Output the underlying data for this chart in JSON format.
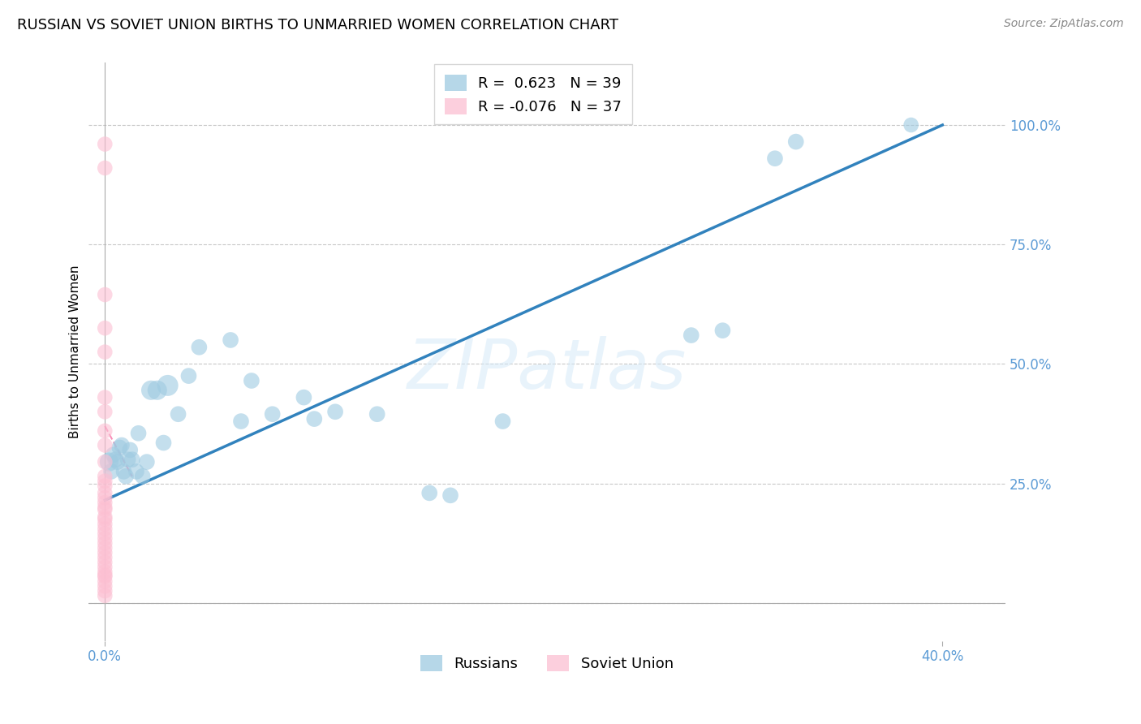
{
  "title": "RUSSIAN VS SOVIET UNION BIRTHS TO UNMARRIED WOMEN CORRELATION CHART",
  "source": "Source: ZipAtlas.com",
  "ylabel": "Births to Unmarried Women",
  "russian_R": 0.623,
  "russian_N": 39,
  "soviet_R": -0.076,
  "soviet_N": 37,
  "blue_color": "#9ecae1",
  "pink_color": "#fcbfd2",
  "blue_line_color": "#3182bd",
  "pink_line_color": "#f768a1",
  "watermark": "ZIPatlas",
  "russians_x": [
    0.002,
    0.003,
    0.004,
    0.005,
    0.006,
    0.007,
    0.008,
    0.009,
    0.01,
    0.011,
    0.012,
    0.013,
    0.015,
    0.016,
    0.018,
    0.02,
    0.022,
    0.025,
    0.028,
    0.03,
    0.035,
    0.04,
    0.045,
    0.06,
    0.065,
    0.07,
    0.08,
    0.095,
    0.1,
    0.11,
    0.13,
    0.155,
    0.165,
    0.19,
    0.28,
    0.295,
    0.32,
    0.33,
    0.385
  ],
  "russians_y": [
    0.295,
    0.275,
    0.31,
    0.3,
    0.295,
    0.325,
    0.33,
    0.275,
    0.265,
    0.3,
    0.32,
    0.3,
    0.275,
    0.355,
    0.265,
    0.295,
    0.445,
    0.445,
    0.335,
    0.455,
    0.395,
    0.475,
    0.535,
    0.55,
    0.38,
    0.465,
    0.395,
    0.43,
    0.385,
    0.4,
    0.395,
    0.23,
    0.225,
    0.38,
    0.56,
    0.57,
    0.93,
    0.965,
    1.0
  ],
  "russians_sizes": [
    280,
    200,
    200,
    200,
    200,
    200,
    200,
    200,
    200,
    200,
    200,
    200,
    200,
    200,
    200,
    200,
    300,
    300,
    200,
    350,
    200,
    200,
    200,
    200,
    200,
    200,
    200,
    200,
    200,
    200,
    200,
    200,
    200,
    200,
    200,
    200,
    200,
    200,
    180
  ],
  "soviet_x": [
    0.0,
    0.0,
    0.0,
    0.0,
    0.0,
    0.0,
    0.0,
    0.0,
    0.0,
    0.0,
    0.0,
    0.0,
    0.0,
    0.0,
    0.0,
    0.0,
    0.0,
    0.0,
    0.0,
    0.0,
    0.0,
    0.0,
    0.0,
    0.0,
    0.0,
    0.0,
    0.0,
    0.0,
    0.0,
    0.0,
    0.0,
    0.0,
    0.0,
    0.0,
    0.0,
    0.0,
    0.0
  ],
  "soviet_y": [
    0.96,
    0.91,
    0.645,
    0.575,
    0.525,
    0.43,
    0.4,
    0.36,
    0.33,
    0.295,
    0.265,
    0.255,
    0.245,
    0.23,
    0.22,
    0.21,
    0.2,
    0.195,
    0.18,
    0.175,
    0.165,
    0.155,
    0.145,
    0.135,
    0.125,
    0.115,
    0.105,
    0.095,
    0.085,
    0.075,
    0.065,
    0.055,
    0.045,
    0.035,
    0.025,
    0.015,
    0.058
  ],
  "soviet_sizes": [
    180,
    180,
    180,
    180,
    180,
    180,
    180,
    180,
    180,
    180,
    180,
    180,
    180,
    180,
    180,
    180,
    180,
    180,
    180,
    180,
    180,
    180,
    180,
    180,
    180,
    180,
    180,
    180,
    180,
    180,
    180,
    180,
    180,
    180,
    180,
    180,
    180
  ],
  "blue_line_x0": 0.0,
  "blue_line_y0": 0.215,
  "blue_line_x1": 0.4,
  "blue_line_y1": 1.0,
  "pink_line_x0": 0.0,
  "pink_line_y0": 0.37,
  "pink_line_x1": 0.013,
  "pink_line_y1": 0.265,
  "xlim": [
    -0.008,
    0.43
  ],
  "ylim": [
    -0.08,
    1.13
  ],
  "background_color": "#ffffff",
  "grid_color": "#c8c8c8",
  "tick_color": "#5b9bd5",
  "title_fontsize": 13,
  "source_fontsize": 10,
  "axis_label_fontsize": 11,
  "legend_fontsize": 13
}
